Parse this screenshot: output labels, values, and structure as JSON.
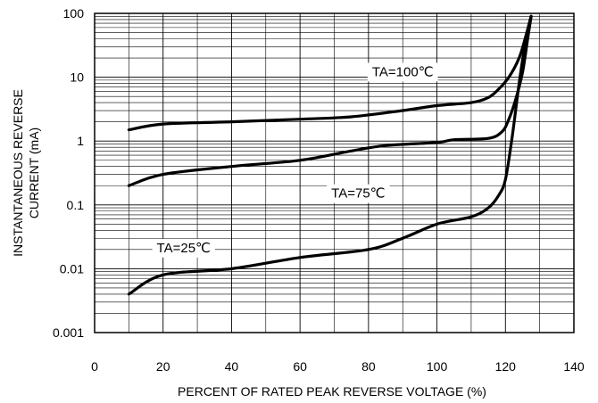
{
  "chart_data": {
    "type": "line",
    "title": "",
    "xlabel": "PERCENT OF RATED PEAK REVERSE VOLTAGE (%)",
    "ylabel_lines": [
      "INSTANTANEOUS REVERSE",
      "CURRENT (mA)"
    ],
    "xlim": [
      0,
      140
    ],
    "ylim": [
      0.001,
      100
    ],
    "yscale": "log",
    "grid": true,
    "x_ticks": [
      "0",
      "20",
      "40",
      "60",
      "80",
      "100",
      "120",
      "140"
    ],
    "y_ticks": [
      "0.001",
      "0.01",
      "0.1",
      "1",
      "10",
      "100"
    ],
    "series": [
      {
        "name": "TA=100℃",
        "x": [
          10,
          20,
          40,
          60,
          75,
          90,
          100,
          110,
          115,
          118,
          121,
          124,
          126,
          127.5
        ],
        "y": [
          1.5,
          1.85,
          2.0,
          2.2,
          2.4,
          3.0,
          3.6,
          4.0,
          4.8,
          6.5,
          10,
          20,
          45,
          90
        ]
      },
      {
        "name": "TA=75℃",
        "x": [
          10,
          20,
          40,
          60,
          75,
          85,
          100,
          105,
          115,
          119,
          121,
          123,
          125,
          126.5,
          127.5
        ],
        "y": [
          0.2,
          0.3,
          0.4,
          0.5,
          0.7,
          0.85,
          0.95,
          1.05,
          1.1,
          1.4,
          2.2,
          4.5,
          12,
          40,
          90
        ]
      },
      {
        "name": "TA=25℃",
        "x": [
          10,
          20,
          40,
          60,
          80,
          90,
          100,
          110,
          115,
          118,
          120,
          122,
          124,
          126,
          127.5
        ],
        "y": [
          0.004,
          0.008,
          0.01,
          0.015,
          0.02,
          0.03,
          0.05,
          0.065,
          0.09,
          0.14,
          0.25,
          1.2,
          8,
          40,
          90
        ]
      }
    ],
    "annotations": [
      {
        "text": "TA=100℃",
        "x": 90,
        "y": 12
      },
      {
        "text": "TA=75℃",
        "x": 77,
        "y": 0.15
      },
      {
        "text": "TA=25℃",
        "x": 26,
        "y": 0.021
      }
    ]
  }
}
